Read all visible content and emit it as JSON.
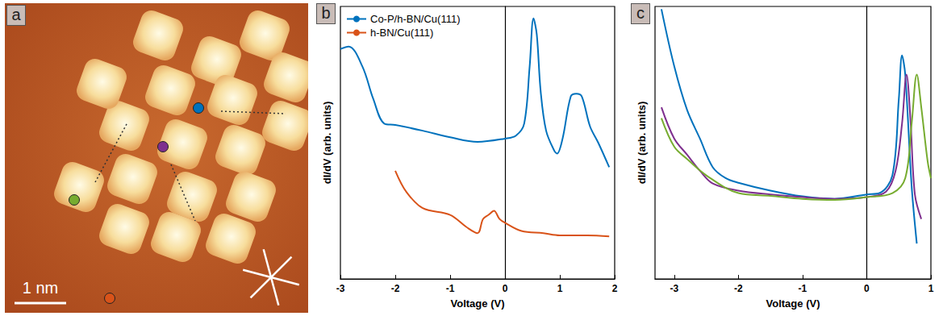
{
  "image": {
    "letter": "a",
    "scale_bar": "1 nm",
    "markers": [
      {
        "color": "#77AC30"
      },
      {
        "color": "#7E2F8E"
      },
      {
        "color": "#0072BD"
      },
      {
        "color": "#D95319"
      }
    ]
  },
  "chart_data": [
    {
      "letter": "b",
      "type": "line",
      "x_label": "Voltage (V)",
      "y_label": "dI/dV (arb. units)",
      "xlim": [
        -3,
        2
      ],
      "xticks": [
        -3,
        -2,
        -1,
        0,
        1,
        2
      ],
      "ylim": [
        0,
        10
      ],
      "tick_labels": "x",
      "legend": "upper left",
      "series": [
        {
          "name": "Co-P/h-BN/Cu(111)",
          "color": "#0072BD",
          "x": [
            -3.0,
            -2.85,
            -2.6,
            -2.4,
            -2.2,
            -2.0,
            -1.5,
            -1.0,
            -0.5,
            0.0,
            0.2,
            0.35,
            0.45,
            0.52,
            0.58,
            0.65,
            0.75,
            0.9,
            0.95,
            1.05,
            1.2,
            1.3,
            1.4,
            1.55,
            1.7,
            1.9
          ],
          "values": [
            8.44,
            8.53,
            7.8,
            6.6,
            5.7,
            5.65,
            5.44,
            5.2,
            5.03,
            5.15,
            5.26,
            5.7,
            7.8,
            9.56,
            8.97,
            6.9,
            5.44,
            4.7,
            4.6,
            5.15,
            6.7,
            6.8,
            6.7,
            5.6,
            5.0,
            4.1
          ]
        },
        {
          "name": "h-BN/Cu(111)",
          "color": "#D95319",
          "x": [
            -2.0,
            -1.8,
            -1.5,
            -1.0,
            -0.7,
            -0.5,
            -0.4,
            -0.3,
            -0.2,
            -0.1,
            0.0,
            0.3,
            0.7,
            1.0,
            1.5,
            1.9
          ],
          "values": [
            3.97,
            3.2,
            2.6,
            2.35,
            1.9,
            1.68,
            2.2,
            2.35,
            2.5,
            2.2,
            2.06,
            1.76,
            1.68,
            1.6,
            1.6,
            1.56
          ]
        }
      ]
    },
    {
      "letter": "c",
      "type": "line",
      "x_label": "Voltage (V)",
      "y_label": "dI/dV (arb. units)",
      "xlim": [
        -3.3,
        1.0
      ],
      "xticks": [
        -3,
        -2,
        -1,
        0,
        1
      ],
      "ylim": [
        0,
        10
      ],
      "tick_labels": "x",
      "series": [
        {
          "color": "#0072BD",
          "x": [
            -3.2,
            -3.0,
            -2.8,
            -2.6,
            -2.4,
            -2.2,
            -2.0,
            -1.5,
            -1.0,
            -0.5,
            0.0,
            0.2,
            0.4,
            0.5,
            0.55,
            0.6,
            0.7,
            0.78
          ],
          "values": [
            9.9,
            7.8,
            6.2,
            5.15,
            4.1,
            3.7,
            3.53,
            3.24,
            3.03,
            2.94,
            3.1,
            3.15,
            3.8,
            6.6,
            8.2,
            7.5,
            3.4,
            1.3
          ]
        },
        {
          "color": "#7E2F8E",
          "x": [
            -3.2,
            -3.0,
            -2.8,
            -2.6,
            -2.4,
            -2.0,
            -1.5,
            -1.0,
            -0.5,
            0.0,
            0.3,
            0.45,
            0.55,
            0.62,
            0.68,
            0.75,
            0.85
          ],
          "values": [
            6.3,
            5.15,
            4.56,
            3.97,
            3.5,
            3.24,
            3.1,
            3.0,
            2.94,
            3.0,
            3.2,
            3.97,
            5.7,
            7.5,
            5.9,
            3.1,
            2.2
          ]
        },
        {
          "color": "#77AC30",
          "x": [
            -3.2,
            -3.0,
            -2.8,
            -2.5,
            -2.0,
            -1.5,
            -1.0,
            -0.5,
            0.0,
            0.4,
            0.6,
            0.7,
            0.78,
            0.85,
            0.95,
            1.0
          ],
          "values": [
            5.9,
            4.85,
            4.4,
            3.8,
            3.15,
            3.05,
            2.94,
            2.9,
            3.0,
            3.15,
            3.7,
            5.7,
            7.5,
            6.3,
            4.3,
            3.7
          ]
        }
      ]
    }
  ]
}
